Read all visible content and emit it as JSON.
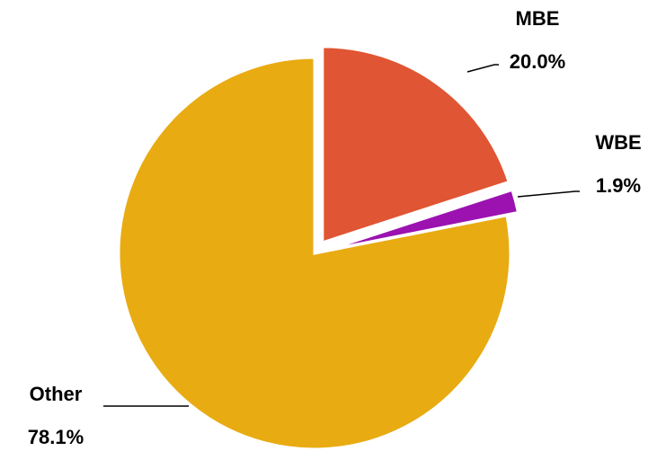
{
  "chart_data": {
    "type": "pie",
    "categories": [
      "MBE",
      "WBE",
      "Other"
    ],
    "values": [
      20,
      1.9,
      78.1
    ],
    "value_labels": [
      "20.0%",
      "1.9%",
      "78.1%"
    ],
    "colors": [
      "#e05533",
      "#9b12b0",
      "#e8ab12"
    ]
  }
}
